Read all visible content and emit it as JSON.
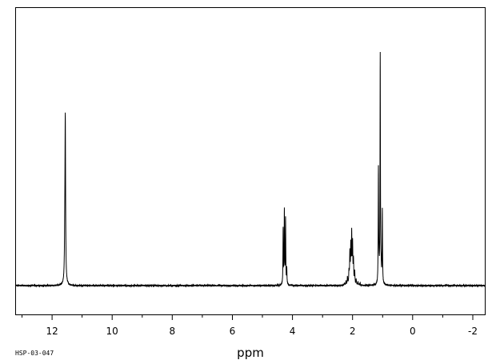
{
  "sample_id": "HSP-03-047",
  "colors": {
    "trace": "#000000",
    "frame": "#000000",
    "background": "#ffffff"
  },
  "chart_data": {
    "type": "line",
    "title": "",
    "xlabel": "ppm",
    "ylabel": "",
    "xlim": [
      13.2,
      -2.4
    ],
    "x_reversed": true,
    "ylim": [
      -0.08,
      1.0
    ],
    "baseline": 0,
    "grid": false,
    "legend": "none",
    "x_ticks": [
      12,
      10,
      8,
      6,
      4,
      2,
      0,
      -2
    ],
    "x_tick_labels": [
      "12",
      "10",
      "8",
      "6",
      "4",
      "2",
      "0",
      "-2"
    ],
    "x_minor_tick_step": 1,
    "peaks": [
      {
        "ppm": 11.56,
        "height": 0.62,
        "width": 0.012
      },
      {
        "ppm": 11.575,
        "height": 0.12,
        "width": 0.015
      },
      {
        "ppm": 4.31,
        "height": 0.22,
        "width": 0.008
      },
      {
        "ppm": 4.27,
        "height": 0.29,
        "width": 0.008
      },
      {
        "ppm": 4.23,
        "height": 0.26,
        "width": 0.008
      },
      {
        "ppm": 4.19,
        "height": 0.06,
        "width": 0.008
      },
      {
        "ppm": 2.27,
        "height": 0.01,
        "width": 0.01
      },
      {
        "ppm": 2.22,
        "height": 0.015,
        "width": 0.01
      },
      {
        "ppm": 2.17,
        "height": 0.03,
        "width": 0.01
      },
      {
        "ppm": 2.12,
        "height": 0.05,
        "width": 0.01
      },
      {
        "ppm": 2.09,
        "height": 0.12,
        "width": 0.01
      },
      {
        "ppm": 2.06,
        "height": 0.14,
        "width": 0.01
      },
      {
        "ppm": 2.03,
        "height": 0.19,
        "width": 0.01
      },
      {
        "ppm": 2.0,
        "height": 0.15,
        "width": 0.01
      },
      {
        "ppm": 1.97,
        "height": 0.09,
        "width": 0.01
      },
      {
        "ppm": 1.93,
        "height": 0.05,
        "width": 0.01
      },
      {
        "ppm": 1.88,
        "height": 0.02,
        "width": 0.01
      },
      {
        "ppm": 1.82,
        "height": 0.012,
        "width": 0.01
      },
      {
        "ppm": 1.75,
        "height": 0.01,
        "width": 0.01
      },
      {
        "ppm": 1.14,
        "height": 0.45,
        "width": 0.008
      },
      {
        "ppm": 1.08,
        "height": 0.9,
        "width": 0.008
      },
      {
        "ppm": 1.01,
        "height": 0.29,
        "width": 0.008
      },
      {
        "ppm": 1.12,
        "height": 0.05,
        "width": 0.01
      },
      {
        "ppm": 1.05,
        "height": 0.05,
        "width": 0.01
      }
    ]
  }
}
